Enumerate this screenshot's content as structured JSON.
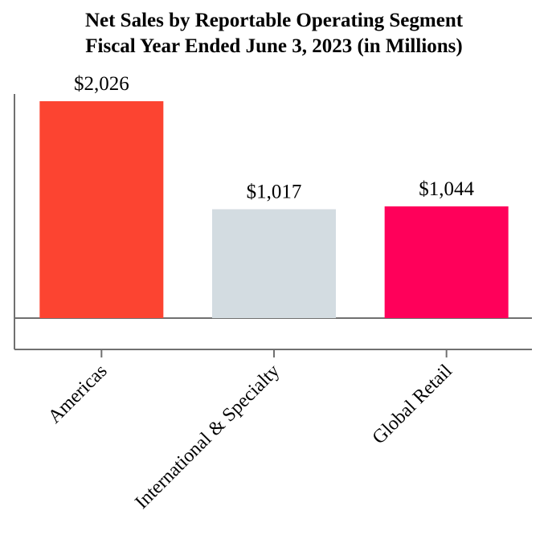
{
  "chart_data": {
    "type": "bar",
    "title_lines": [
      "Net Sales by Reportable Operating Segment",
      "Fiscal Year Ended June 3, 2023 (in Millions)"
    ],
    "categories": [
      "Americas",
      "International & Specialty",
      "Global Retail"
    ],
    "values": [
      2026,
      1017,
      1044
    ],
    "data_labels": [
      "$2,026",
      "$1,017",
      "$1,044"
    ],
    "colors": [
      "#fc4431",
      "#d3dce1",
      "#ff005a"
    ],
    "axis_color": "#707070",
    "xlabel": "",
    "ylabel": "",
    "ylim": [
      -300,
      2100
    ],
    "grid": false,
    "legend": "none"
  }
}
